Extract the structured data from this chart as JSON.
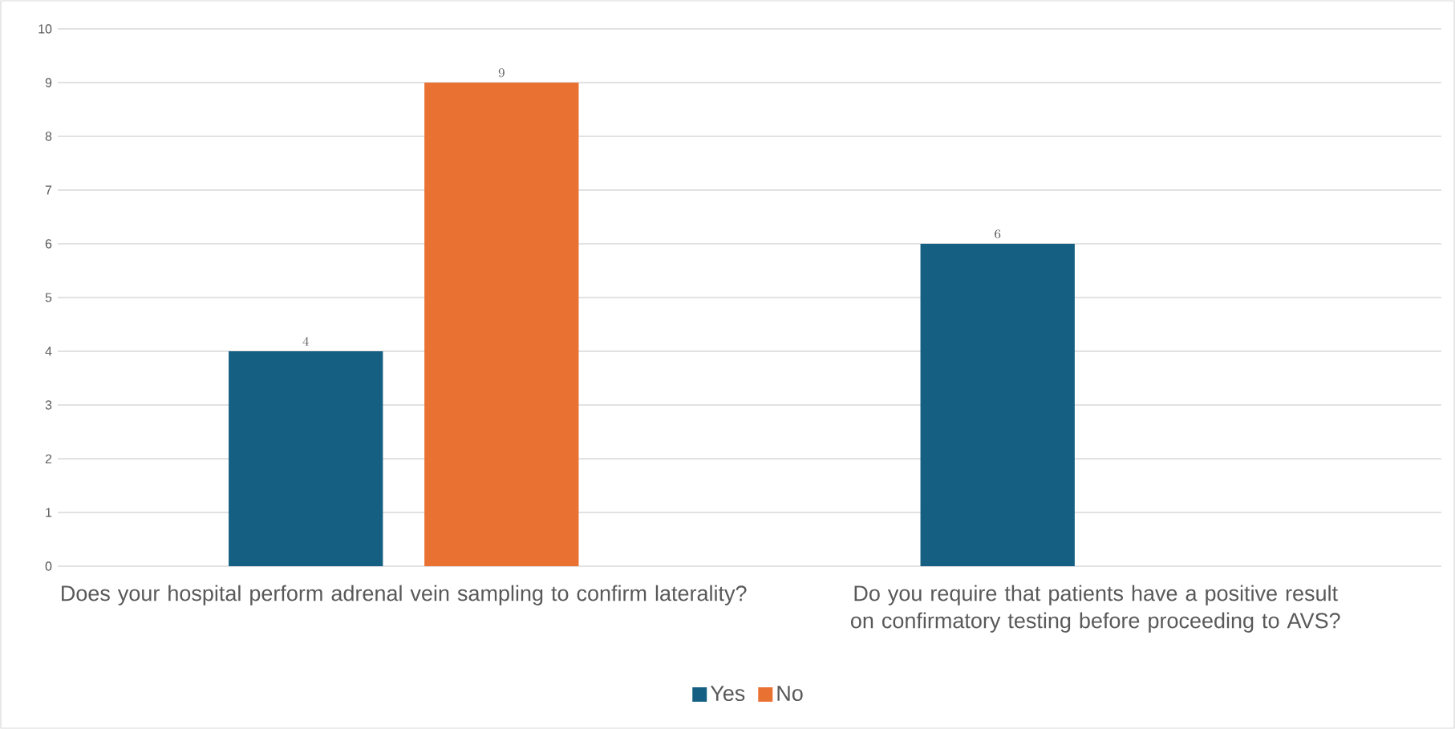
{
  "chart_data": {
    "type": "bar",
    "categories": [
      "Does your hospital perform adrenal vein sampling to confirm laterality?",
      "Do you require that patients have a positive result on confirmatory testing before proceeding to AVS?"
    ],
    "series": [
      {
        "name": "Yes",
        "color": "#156082",
        "values": [
          4,
          6
        ]
      },
      {
        "name": "No",
        "color": "#e97132",
        "values": [
          9,
          null
        ]
      }
    ],
    "ylim": [
      0,
      10
    ],
    "yticks": [
      0,
      1,
      2,
      3,
      4,
      5,
      6,
      7,
      8,
      9,
      10
    ],
    "grid": "y",
    "legend": "bottom",
    "data_labels": true
  }
}
